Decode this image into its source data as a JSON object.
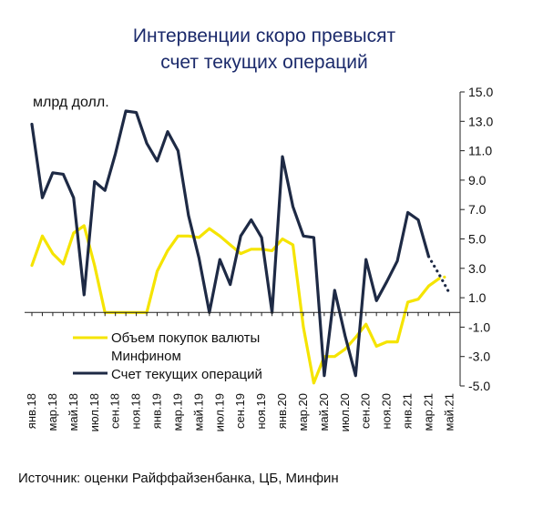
{
  "chart_data": {
    "type": "line",
    "title_line1": "Интервенции скоро превысят",
    "title_line2": "счет текущих операций",
    "unit_label": "млрд долл.",
    "source": "Источник: оценки Райффайзенбанка, ЦБ, Минфин",
    "ylim": [
      -5.0,
      15.0
    ],
    "y_ticks": [
      "15.0",
      "13.0",
      "11.0",
      "9.0",
      "7.0",
      "5.0",
      "3.0",
      "1.0",
      "-1.0",
      "-3.0",
      "-5.0"
    ],
    "y_axis_side": "right",
    "x_tick_labels": [
      "янв.18",
      "мар.18",
      "май.18",
      "июл.18",
      "сен.18",
      "ноя.18",
      "янв.19",
      "мар.19",
      "май.19",
      "июл.19",
      "сен.19",
      "ноя.19",
      "янв.20",
      "мар.20",
      "май.20",
      "июл.20",
      "сен.20",
      "ноя.20",
      "янв.21",
      "мар.21",
      "май.21"
    ],
    "months": [
      "янв.18",
      "фев.18",
      "мар.18",
      "апр.18",
      "май.18",
      "июн.18",
      "июл.18",
      "авг.18",
      "сен.18",
      "окт.18",
      "ноя.18",
      "дек.18",
      "янв.19",
      "фев.19",
      "мар.19",
      "апр.19",
      "май.19",
      "июн.19",
      "июл.19",
      "авг.19",
      "сен.19",
      "окт.19",
      "ноя.19",
      "дек.19",
      "янв.20",
      "фев.20",
      "мар.20",
      "апр.20",
      "май.20",
      "июн.20",
      "июл.20",
      "авг.20",
      "сен.20",
      "окт.20",
      "ноя.20",
      "дек.20",
      "янв.21",
      "фев.21",
      "мар.21",
      "апр.21",
      "май.21"
    ],
    "grid": false,
    "legend_placement": "bottom-left",
    "series": [
      {
        "name": "Объем покупок валюты Минфином",
        "legend_line1": "Объем покупок валюты",
        "legend_line2": "Минфином",
        "color": "#f5e400",
        "values": [
          3.2,
          5.2,
          4.0,
          3.3,
          5.4,
          5.9,
          3.2,
          0.0,
          0.0,
          0.0,
          0.0,
          0.0,
          2.8,
          4.2,
          5.2,
          5.2,
          5.1,
          5.7,
          5.2,
          4.6,
          4.0,
          4.3,
          4.3,
          4.2,
          5.0,
          4.6,
          -1.0,
          -4.8,
          -3.0,
          -3.0,
          -2.5,
          -1.7,
          -0.8,
          -2.3,
          -2.0,
          -2.0,
          0.7,
          0.9,
          1.8,
          2.3,
          2.5
        ],
        "dotted_from_index": 39
      },
      {
        "name": "Счет текущих операций",
        "color": "#1e2a45",
        "values": [
          12.8,
          7.8,
          9.5,
          9.4,
          7.8,
          1.2,
          8.9,
          8.3,
          10.8,
          13.7,
          13.6,
          11.5,
          10.3,
          12.3,
          11.0,
          6.6,
          3.7,
          0.0,
          3.6,
          1.9,
          5.2,
          6.3,
          5.1,
          0.0,
          10.6,
          7.2,
          5.2,
          5.1,
          -4.3,
          1.5,
          -1.6,
          -4.3,
          3.6,
          0.8,
          2.1,
          3.5,
          6.8,
          6.3,
          3.8,
          2.6,
          1.3
        ],
        "dotted_from_index": 38
      }
    ]
  }
}
